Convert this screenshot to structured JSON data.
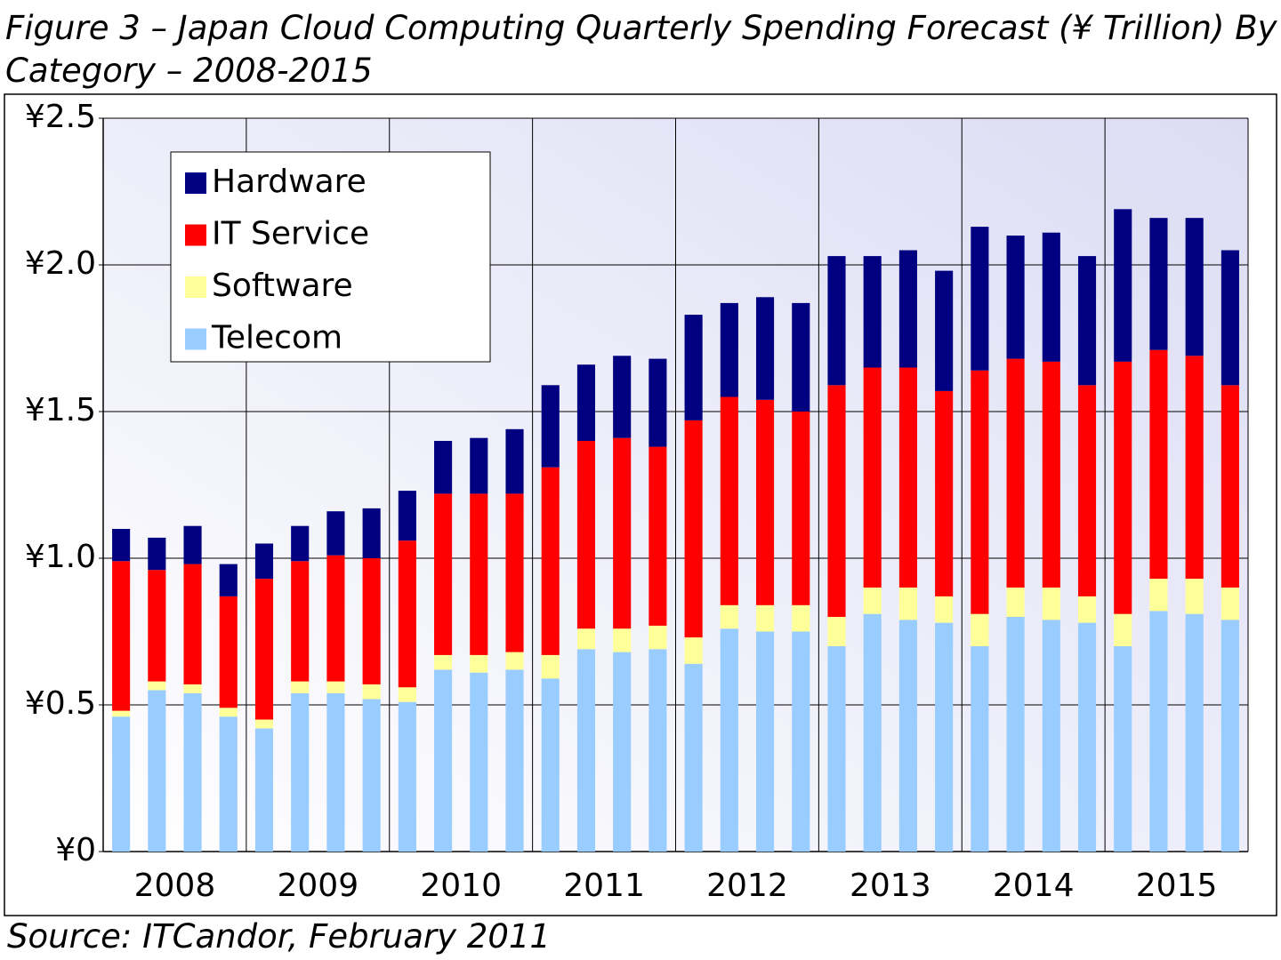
{
  "chart_data": {
    "type": "stacked-bar",
    "title": "Figure 3 – Japan Cloud Computing Quarterly Spending Forecast (¥ Trillion) By Category – 2008-2015",
    "source": "Source: ITCandor, February 2011",
    "categories": [
      "2008",
      "2009",
      "2010",
      "2011",
      "2012",
      "2013",
      "2014",
      "2015"
    ],
    "series": [
      {
        "name": "Hardware",
        "color": "#000080",
        "values": [
          [
            0.11,
            0.11,
            0.13,
            0.11
          ],
          [
            0.12,
            0.12,
            0.15,
            0.17
          ],
          [
            0.17,
            0.18,
            0.19,
            0.22
          ],
          [
            0.28,
            0.26,
            0.28,
            0.3
          ],
          [
            0.36,
            0.32,
            0.35,
            0.37
          ],
          [
            0.44,
            0.38,
            0.4,
            0.41
          ],
          [
            0.49,
            0.42,
            0.44,
            0.44
          ],
          [
            0.52,
            0.45,
            0.47,
            0.46
          ]
        ]
      },
      {
        "name": "IT Service",
        "color": "#ff0000",
        "values": [
          [
            0.51,
            0.38,
            0.41,
            0.38
          ],
          [
            0.48,
            0.41,
            0.43,
            0.43
          ],
          [
            0.5,
            0.55,
            0.55,
            0.54
          ],
          [
            0.64,
            0.64,
            0.65,
            0.61
          ],
          [
            0.74,
            0.71,
            0.7,
            0.66
          ],
          [
            0.79,
            0.75,
            0.75,
            0.7
          ],
          [
            0.83,
            0.78,
            0.77,
            0.72
          ],
          [
            0.86,
            0.78,
            0.76,
            0.69
          ]
        ]
      },
      {
        "name": "Software",
        "color": "#ffff99",
        "values": [
          [
            0.02,
            0.03,
            0.03,
            0.03
          ],
          [
            0.03,
            0.04,
            0.04,
            0.05
          ],
          [
            0.05,
            0.05,
            0.06,
            0.06
          ],
          [
            0.08,
            0.07,
            0.08,
            0.08
          ],
          [
            0.09,
            0.08,
            0.09,
            0.09
          ],
          [
            0.1,
            0.09,
            0.11,
            0.09
          ],
          [
            0.11,
            0.1,
            0.11,
            0.09
          ],
          [
            0.11,
            0.11,
            0.12,
            0.11
          ]
        ]
      },
      {
        "name": "Telecom",
        "color": "#99ccff",
        "values": [
          [
            0.46,
            0.55,
            0.54,
            0.46
          ],
          [
            0.42,
            0.54,
            0.54,
            0.52
          ],
          [
            0.51,
            0.62,
            0.61,
            0.62
          ],
          [
            0.59,
            0.69,
            0.68,
            0.69
          ],
          [
            0.64,
            0.76,
            0.75,
            0.75
          ],
          [
            0.7,
            0.81,
            0.79,
            0.78
          ],
          [
            0.7,
            0.8,
            0.79,
            0.78
          ],
          [
            0.7,
            0.82,
            0.81,
            0.79
          ]
        ]
      }
    ],
    "ylim": [
      0,
      2.5
    ],
    "yticks": [
      {
        "value": 0,
        "label": "¥0"
      },
      {
        "value": 0.5,
        "label": "¥0.5"
      },
      {
        "value": 1.0,
        "label": "¥1.0"
      },
      {
        "value": 1.5,
        "label": "¥1.5"
      },
      {
        "value": 2.0,
        "label": "¥2.0"
      },
      {
        "value": 2.5,
        "label": "¥2.5"
      }
    ],
    "grid": true,
    "legend": "top-left"
  }
}
